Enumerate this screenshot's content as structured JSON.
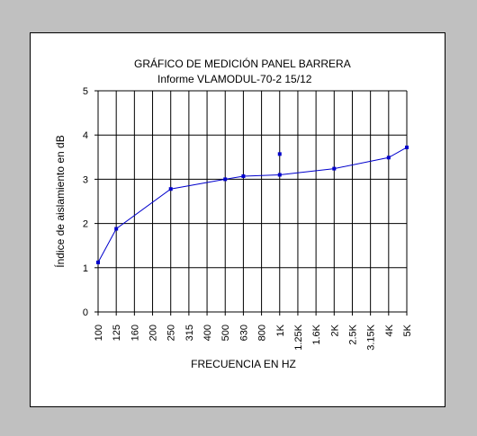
{
  "chart_data": {
    "type": "line",
    "title": "GRÁFICO DE MEDICIÓN PANEL BARRERA",
    "subtitle": "Informe VLAMODUL-70-2  15/12",
    "xlabel": "FRECUENCIA EN HZ",
    "ylabel": "Índice de aislamiento en dB",
    "categories": [
      "100",
      "125",
      "160",
      "200",
      "250",
      "315",
      "400",
      "500",
      "630",
      "800",
      "1K",
      "1.25K",
      "1.6K",
      "2K",
      "2.5K",
      "3.15K",
      "4K",
      "5K"
    ],
    "ylim": [
      0,
      5
    ],
    "yticks": [
      "0",
      "1",
      "2",
      "3",
      "4",
      "5"
    ],
    "grid": true,
    "legend": "none",
    "series": [
      {
        "color": "#0000cc",
        "points": [
          {
            "x": "100",
            "y": 1.12
          },
          {
            "x": "125",
            "y": 1.88
          },
          {
            "x": "250",
            "y": 2.78
          },
          {
            "x": "500",
            "y": 3.0
          },
          {
            "x": "630",
            "y": 3.07
          },
          {
            "x": "1K",
            "y": 3.1
          },
          {
            "x": "2K",
            "y": 3.24
          },
          {
            "x": "4K",
            "y": 3.49
          },
          {
            "x": "5K",
            "y": 3.72
          }
        ]
      },
      {
        "color": "#0000cc",
        "points": [
          {
            "x": "1K",
            "y": 3.57
          }
        ]
      }
    ]
  }
}
